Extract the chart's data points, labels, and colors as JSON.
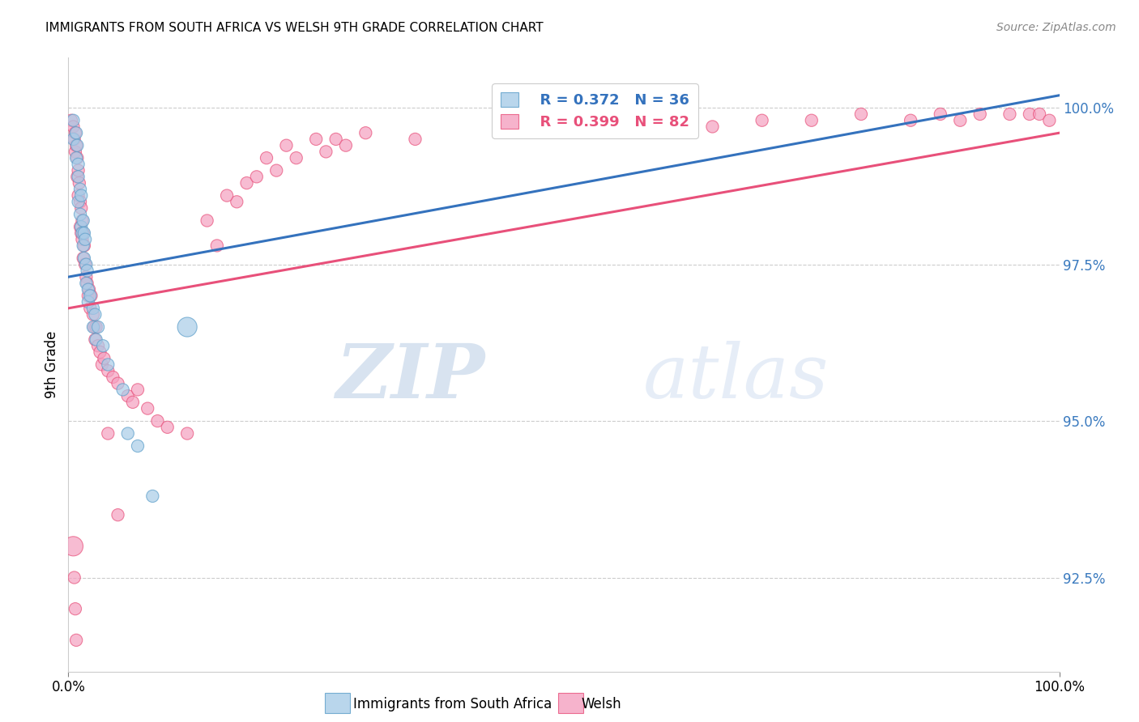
{
  "title": "IMMIGRANTS FROM SOUTH AFRICA VS WELSH 9TH GRADE CORRELATION CHART",
  "source": "Source: ZipAtlas.com",
  "ylabel": "9th Grade",
  "yticks": [
    92.5,
    95.0,
    97.5,
    100.0
  ],
  "ytick_labels": [
    "92.5%",
    "95.0%",
    "97.5%",
    "100.0%"
  ],
  "xmin": 0.0,
  "xmax": 1.0,
  "ymin": 91.0,
  "ymax": 100.8,
  "blue_R": "R = 0.372",
  "blue_N": "N = 36",
  "pink_R": "R = 0.399",
  "pink_N": "N = 82",
  "blue_color": "#a8cce8",
  "pink_color": "#f4a0c0",
  "blue_edge_color": "#5b9ec9",
  "pink_edge_color": "#e8507a",
  "blue_line_color": "#3472bd",
  "pink_line_color": "#e8507a",
  "legend_blue": "Immigrants from South Africa",
  "legend_pink": "Welsh",
  "watermark_zip": "ZIP",
  "watermark_atlas": "atlas",
  "blue_points_x": [
    0.005,
    0.005,
    0.008,
    0.008,
    0.009,
    0.01,
    0.01,
    0.01,
    0.012,
    0.012,
    0.013,
    0.013,
    0.014,
    0.015,
    0.015,
    0.016,
    0.016,
    0.017,
    0.018,
    0.018,
    0.019,
    0.02,
    0.02,
    0.022,
    0.025,
    0.025,
    0.027,
    0.028,
    0.03,
    0.035,
    0.04,
    0.055,
    0.06,
    0.07,
    0.085,
    0.12
  ],
  "blue_points_y": [
    99.8,
    99.5,
    99.6,
    99.2,
    99.4,
    99.1,
    98.9,
    98.5,
    98.7,
    98.3,
    98.6,
    98.1,
    98.0,
    98.2,
    97.8,
    98.0,
    97.6,
    97.9,
    97.5,
    97.2,
    97.4,
    97.1,
    96.9,
    97.0,
    96.8,
    96.5,
    96.7,
    96.3,
    96.5,
    96.2,
    95.9,
    95.5,
    94.8,
    94.6,
    93.8,
    96.5
  ],
  "pink_points_x": [
    0.003,
    0.005,
    0.006,
    0.007,
    0.007,
    0.008,
    0.009,
    0.009,
    0.01,
    0.01,
    0.011,
    0.012,
    0.012,
    0.013,
    0.013,
    0.014,
    0.014,
    0.015,
    0.015,
    0.016,
    0.017,
    0.018,
    0.019,
    0.02,
    0.021,
    0.022,
    0.023,
    0.025,
    0.026,
    0.027,
    0.028,
    0.03,
    0.032,
    0.034,
    0.036,
    0.04,
    0.045,
    0.05,
    0.06,
    0.065,
    0.07,
    0.08,
    0.09,
    0.1,
    0.12,
    0.15,
    0.17,
    0.18,
    0.2,
    0.22,
    0.25,
    0.27,
    0.3,
    0.35,
    0.5,
    0.55,
    0.6,
    0.65,
    0.7,
    0.75,
    0.8,
    0.85,
    0.88,
    0.9,
    0.92,
    0.95,
    0.97,
    0.98,
    0.99,
    0.005,
    0.04,
    0.05,
    0.006,
    0.007,
    0.008,
    0.14,
    0.16,
    0.19,
    0.21,
    0.23,
    0.26,
    0.28
  ],
  "pink_points_y": [
    99.8,
    99.7,
    99.5,
    99.6,
    99.3,
    99.4,
    99.2,
    98.9,
    99.0,
    98.6,
    98.8,
    98.5,
    98.1,
    98.4,
    98.0,
    98.2,
    97.9,
    98.0,
    97.6,
    97.8,
    97.5,
    97.3,
    97.2,
    97.0,
    97.1,
    96.8,
    97.0,
    96.7,
    96.5,
    96.3,
    96.5,
    96.2,
    96.1,
    95.9,
    96.0,
    95.8,
    95.7,
    95.6,
    95.4,
    95.3,
    95.5,
    95.2,
    95.0,
    94.9,
    94.8,
    97.8,
    98.5,
    98.8,
    99.2,
    99.4,
    99.5,
    99.5,
    99.6,
    99.5,
    99.7,
    99.7,
    99.8,
    99.7,
    99.8,
    99.8,
    99.9,
    99.8,
    99.9,
    99.8,
    99.9,
    99.9,
    99.9,
    99.9,
    99.8,
    93.0,
    94.8,
    93.5,
    92.5,
    92.0,
    91.5,
    98.2,
    98.6,
    98.9,
    99.0,
    99.2,
    99.3,
    99.4
  ],
  "blue_size_default": 120,
  "pink_size_default": 120,
  "pink_large_idx": 69,
  "pink_large_size": 300
}
